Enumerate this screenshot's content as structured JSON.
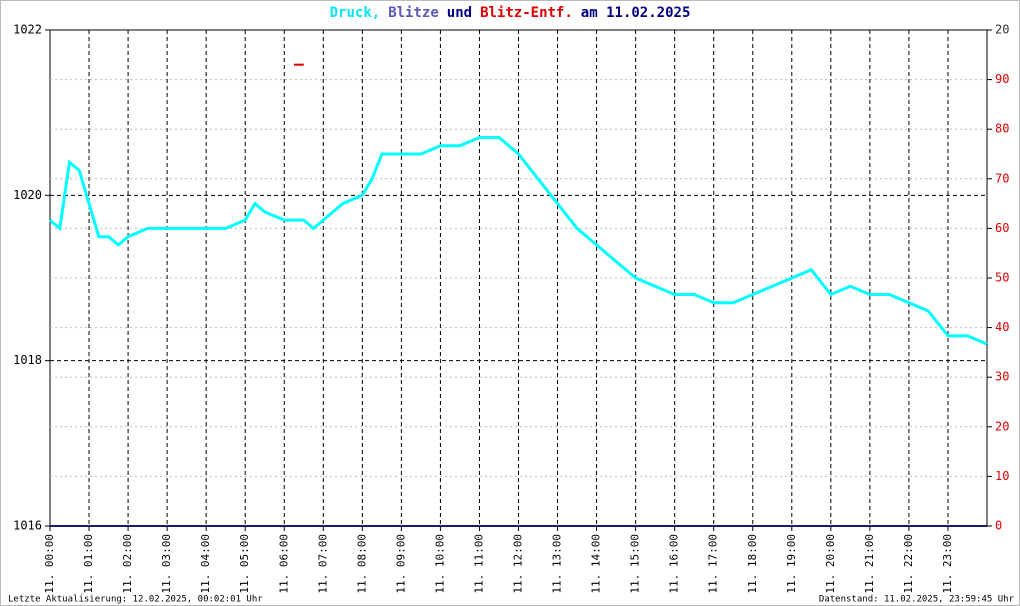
{
  "chart_data": {
    "type": "line",
    "title": [
      "Druck,",
      "Blitze",
      "und",
      "Blitz-Entf.",
      "am 11.02.2025"
    ],
    "title_colors": [
      "#00e5ee",
      "#5a5ab4",
      "#000080",
      "#e00000",
      "#000080"
    ],
    "footer_left": "Letzte Aktualisierung: 12.02.2025, 00:02:01 Uhr",
    "footer_right": "Datenstand: 11.02.2025, 23:59:45 Uhr",
    "xlim": [
      0,
      24
    ],
    "xticks": [
      {
        "value": 0,
        "label": "11. 00:00"
      },
      {
        "value": 1,
        "label": "11. 01:00"
      },
      {
        "value": 2,
        "label": "11. 02:00"
      },
      {
        "value": 3,
        "label": "11. 03:00"
      },
      {
        "value": 4,
        "label": "11. 04:00"
      },
      {
        "value": 5,
        "label": "11. 05:00"
      },
      {
        "value": 6,
        "label": "11. 06:00"
      },
      {
        "value": 7,
        "label": "11. 07:00"
      },
      {
        "value": 8,
        "label": "11. 08:00"
      },
      {
        "value": 9,
        "label": "11. 09:00"
      },
      {
        "value": 10,
        "label": "11. 10:00"
      },
      {
        "value": 11,
        "label": "11. 11:00"
      },
      {
        "value": 12,
        "label": "11. 12:00"
      },
      {
        "value": 13,
        "label": "11. 13:00"
      },
      {
        "value": 14,
        "label": "11. 14:00"
      },
      {
        "value": 15,
        "label": "11. 15:00"
      },
      {
        "value": 16,
        "label": "11. 16:00"
      },
      {
        "value": 17,
        "label": "11. 17:00"
      },
      {
        "value": 18,
        "label": "11. 18:00"
      },
      {
        "value": 19,
        "label": "11. 19:00"
      },
      {
        "value": 20,
        "label": "11. 20:00"
      },
      {
        "value": 21,
        "label": "11. 21:00"
      },
      {
        "value": 22,
        "label": "11. 22:00"
      },
      {
        "value": 23,
        "label": "11. 23:00"
      }
    ],
    "ylim": [
      1016,
      1022
    ],
    "yticks": [
      1016,
      1018,
      1020,
      1022
    ],
    "y2lim": [
      0,
      100
    ],
    "y2ticks": [
      0,
      10,
      20,
      30,
      40,
      50,
      60,
      70,
      80,
      90
    ],
    "y2_color": "#e00000",
    "y3lim": [
      0,
      20
    ],
    "y3ticks": [
      20
    ],
    "grid": true,
    "series": [
      {
        "color": "#00ffff",
        "axis": "y",
        "x": [
          0,
          0.25,
          0.5,
          0.75,
          1,
          1.25,
          1.5,
          1.75,
          2,
          2.5,
          3,
          3.5,
          4,
          4.5,
          5,
          5.25,
          5.5,
          6,
          6.5,
          6.75,
          7,
          7.5,
          8,
          8.25,
          8.5,
          9,
          9.5,
          10,
          10.5,
          11,
          11.5,
          12,
          12.5,
          13,
          13.5,
          14,
          14.5,
          15,
          15.5,
          16,
          16.5,
          17,
          17.5,
          18,
          18.5,
          19,
          19.5,
          20,
          20.5,
          21,
          21.5,
          22,
          22.5,
          23,
          23.5,
          24
        ],
        "values": [
          1019.7,
          1019.6,
          1020.4,
          1020.3,
          1019.9,
          1019.5,
          1019.5,
          1019.4,
          1019.5,
          1019.6,
          1019.6,
          1019.6,
          1019.6,
          1019.6,
          1019.7,
          1019.9,
          1019.8,
          1019.7,
          1019.7,
          1019.6,
          1019.7,
          1019.9,
          1020.0,
          1020.2,
          1020.5,
          1020.5,
          1020.5,
          1020.6,
          1020.6,
          1020.7,
          1020.7,
          1020.5,
          1020.2,
          1019.9,
          1019.6,
          1019.4,
          1019.2,
          1019.0,
          1018.9,
          1018.8,
          1018.8,
          1018.7,
          1018.7,
          1018.8,
          1018.9,
          1019.0,
          1019.1,
          1018.8,
          1018.9,
          1018.8,
          1018.8,
          1018.7,
          1018.6,
          1018.3,
          1018.3,
          1018.2
        ]
      },
      {
        "color": "#1a1a6e",
        "axis": "y3",
        "x": [
          0,
          24
        ],
        "values": [
          0,
          0
        ]
      },
      {
        "color": "#e00000",
        "axis": "y2",
        "x": [
          6.25,
          6.5
        ],
        "values": [
          93,
          93
        ]
      }
    ]
  }
}
